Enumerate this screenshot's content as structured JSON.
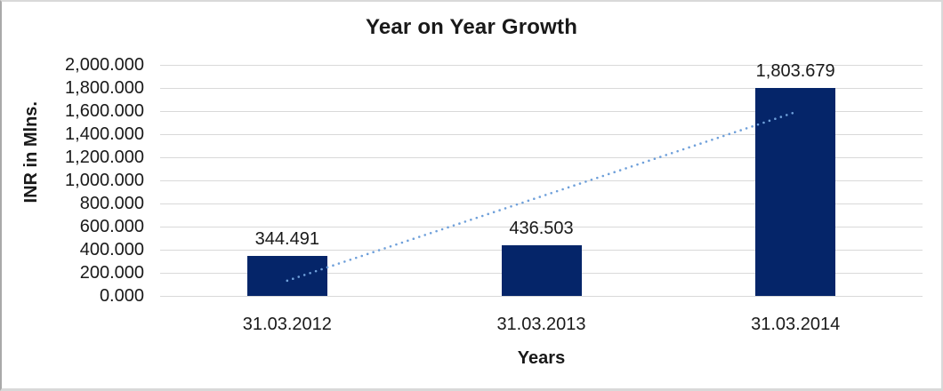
{
  "chart_data": {
    "type": "bar",
    "title": "Year on Year Growth",
    "xlabel": "Years",
    "ylabel": "INR in Mlns.",
    "categories": [
      "31.03.2012",
      "31.03.2013",
      "31.03.2014"
    ],
    "values": [
      344.491,
      436.503,
      1803.679
    ],
    "data_labels": [
      "344.491",
      "436.503",
      "1,803.679"
    ],
    "y_ticks": [
      "2,000.000",
      "1,800.000",
      "1,600.000",
      "1,400.000",
      "1,200.000",
      "1,000.000",
      "800.000",
      "600.000",
      "400.000",
      "200.000",
      "0.000"
    ],
    "ylim": [
      0,
      2000
    ],
    "y_tick_step": 200,
    "grid": true,
    "legend": false,
    "bar_color": "#052569",
    "gridline_color": "#d9d9d9",
    "trendline": {
      "type": "linear",
      "style": "dotted",
      "color": "#6FA0DA"
    }
  },
  "frame": {
    "border_color": "#d9d9d9"
  }
}
